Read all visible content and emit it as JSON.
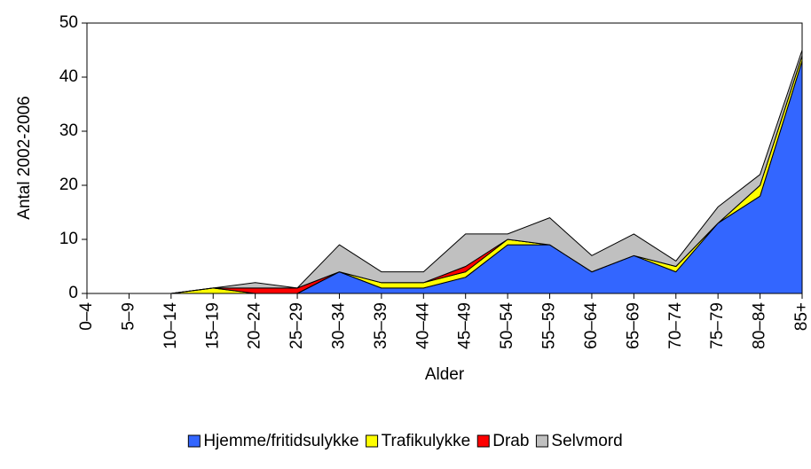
{
  "chart_data": {
    "type": "stacked-area",
    "x_label": "Alder",
    "y_label": "Antal 2002-2006",
    "categories": [
      "0–4",
      "5–9",
      "10–14",
      "15–19",
      "20–24",
      "25–29",
      "30–34",
      "35–39",
      "40–44",
      "45–49",
      "50–54",
      "55–59",
      "60–64",
      "65–69",
      "70–74",
      "75–79",
      "80–84",
      "85+"
    ],
    "series": [
      {
        "name": "Hjemme/fritidsulykke",
        "color": "#3366ff",
        "values": [
          0,
          0,
          0,
          0,
          0,
          0,
          4,
          1,
          1,
          3,
          9,
          9,
          4,
          7,
          4,
          13,
          18,
          43
        ]
      },
      {
        "name": "Trafikulykke",
        "color": "#ffff00",
        "values": [
          0,
          0,
          0,
          1,
          0,
          0,
          0,
          1,
          1,
          1,
          1,
          0,
          0,
          0,
          1,
          0,
          2,
          1
        ]
      },
      {
        "name": "Drab",
        "color": "#ff0000",
        "values": [
          0,
          0,
          0,
          0,
          1,
          1,
          0,
          0,
          0,
          1,
          0,
          0,
          0,
          0,
          0,
          0,
          0,
          0
        ]
      },
      {
        "name": "Selvmord",
        "color": "#c0c0c0",
        "values": [
          0,
          0,
          0,
          0,
          1,
          0,
          5,
          2,
          2,
          6,
          1,
          5,
          3,
          4,
          1,
          3,
          2,
          1
        ]
      }
    ],
    "ylim": [
      0,
      50
    ],
    "yticks": [
      0,
      10,
      20,
      30,
      40,
      50
    ],
    "grid": false,
    "legend": "bottom"
  }
}
